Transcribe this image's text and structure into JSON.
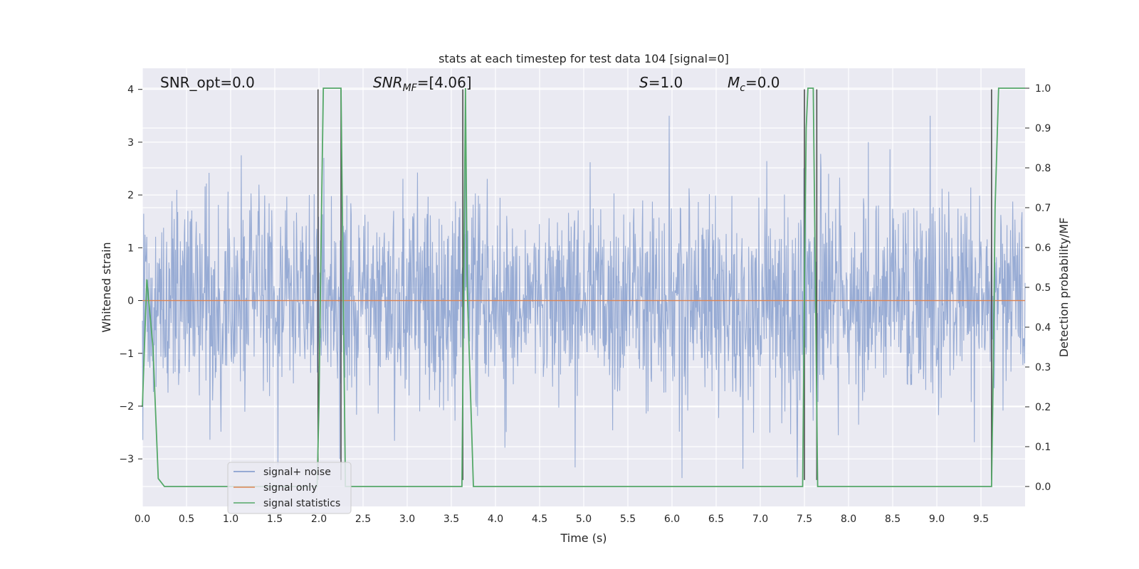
{
  "chart_data": {
    "type": "line",
    "title": "stats at each timestep for test data 104 [signal=0]",
    "xlabel": "Time (s)",
    "ylabel": "Whitened strain",
    "y2label": "Detection probability/MF",
    "xlim": [
      0.0,
      10.0
    ],
    "ylim": [
      -3.9,
      4.4
    ],
    "y2lim": [
      -0.05,
      1.05
    ],
    "x_ticks": [
      0.0,
      0.5,
      1.0,
      1.5,
      2.0,
      2.5,
      3.0,
      3.5,
      4.0,
      4.5,
      5.0,
      5.5,
      6.0,
      6.5,
      7.0,
      7.5,
      8.0,
      8.5,
      9.0,
      9.5
    ],
    "x_tick_labels": [
      "0.0",
      "0.5",
      "1.0",
      "1.5",
      "2.0",
      "2.5",
      "3.0",
      "3.5",
      "4.0",
      "4.5",
      "5.0",
      "5.5",
      "6.0",
      "6.5",
      "7.0",
      "7.5",
      "8.0",
      "8.5",
      "9.0",
      "9.5"
    ],
    "y_ticks": [
      -3,
      -2,
      -1,
      0,
      1,
      2,
      3,
      4
    ],
    "y_tick_labels": [
      "−3",
      "−2",
      "−1",
      "0",
      "1",
      "2",
      "3",
      "4"
    ],
    "y2_ticks": [
      0.0,
      0.1,
      0.2,
      0.3,
      0.4,
      0.5,
      0.6,
      0.7,
      0.8,
      0.9,
      1.0
    ],
    "y2_tick_labels": [
      "0.0",
      "0.1",
      "0.2",
      "0.3",
      "0.4",
      "0.5",
      "0.6",
      "0.7",
      "0.8",
      "0.9",
      "1.0"
    ],
    "grid": true,
    "legend_position": "lower-left",
    "annotations": {
      "snr_opt": "SNR_opt=0.0",
      "snr_mf_main": "SNR",
      "snr_mf_sub": "MF",
      "snr_mf_value": "=[4.06]",
      "s_main": "S",
      "s_value": "=1.0",
      "mc_main": "M",
      "mc_sub": "c",
      "mc_value": "=0.0"
    },
    "series": [
      {
        "name": "signal+ noise",
        "axis": "left",
        "color": "#7b95c9",
        "style": "noise",
        "sample_count": 2000,
        "band_sigma": 1.0,
        "peak_max": 3.5,
        "peak_min": -3.5
      },
      {
        "name": "signal only",
        "axis": "left",
        "color": "#dd8452",
        "x": [
          0.0,
          10.0
        ],
        "y": [
          0.0,
          0.0
        ]
      },
      {
        "name": "signal statistics",
        "axis": "right",
        "color": "#55a868",
        "x": [
          0.0,
          0.05,
          0.12,
          0.18,
          0.25,
          1.98,
          2.0,
          2.03,
          2.05,
          2.25,
          2.27,
          2.3,
          3.62,
          3.64,
          3.66,
          3.68,
          3.75,
          7.48,
          7.5,
          7.52,
          7.54,
          7.6,
          7.65,
          7.72,
          9.62,
          9.64,
          9.66,
          9.7,
          10.0
        ],
        "y": [
          0.2,
          0.52,
          0.35,
          0.02,
          0.0,
          0.0,
          0.2,
          0.7,
          1.0,
          1.0,
          0.6,
          0.0,
          0.0,
          0.5,
          1.0,
          0.5,
          0.0,
          0.0,
          0.5,
          0.9,
          1.0,
          1.0,
          0.0,
          0.0,
          0.0,
          0.3,
          0.7,
          1.0,
          1.0
        ]
      },
      {
        "name": "",
        "axis": "left",
        "color": "#4d4d4d",
        "style": "vlines",
        "x": [
          1.99,
          2.25,
          3.63,
          7.5,
          7.64,
          9.62
        ],
        "y": [
          [
            -3.4,
            4.0
          ],
          [
            -3.4,
            4.0
          ],
          [
            -3.4,
            4.0
          ],
          [
            -3.4,
            4.0
          ],
          [
            -3.4,
            4.0
          ],
          [
            -3.4,
            4.0
          ]
        ]
      }
    ],
    "legend": [
      {
        "label": "signal+ noise",
        "color": "#7b95c9"
      },
      {
        "label": "signal only",
        "color": "#dd8452"
      },
      {
        "label": "signal statistics",
        "color": "#55a868"
      }
    ]
  }
}
